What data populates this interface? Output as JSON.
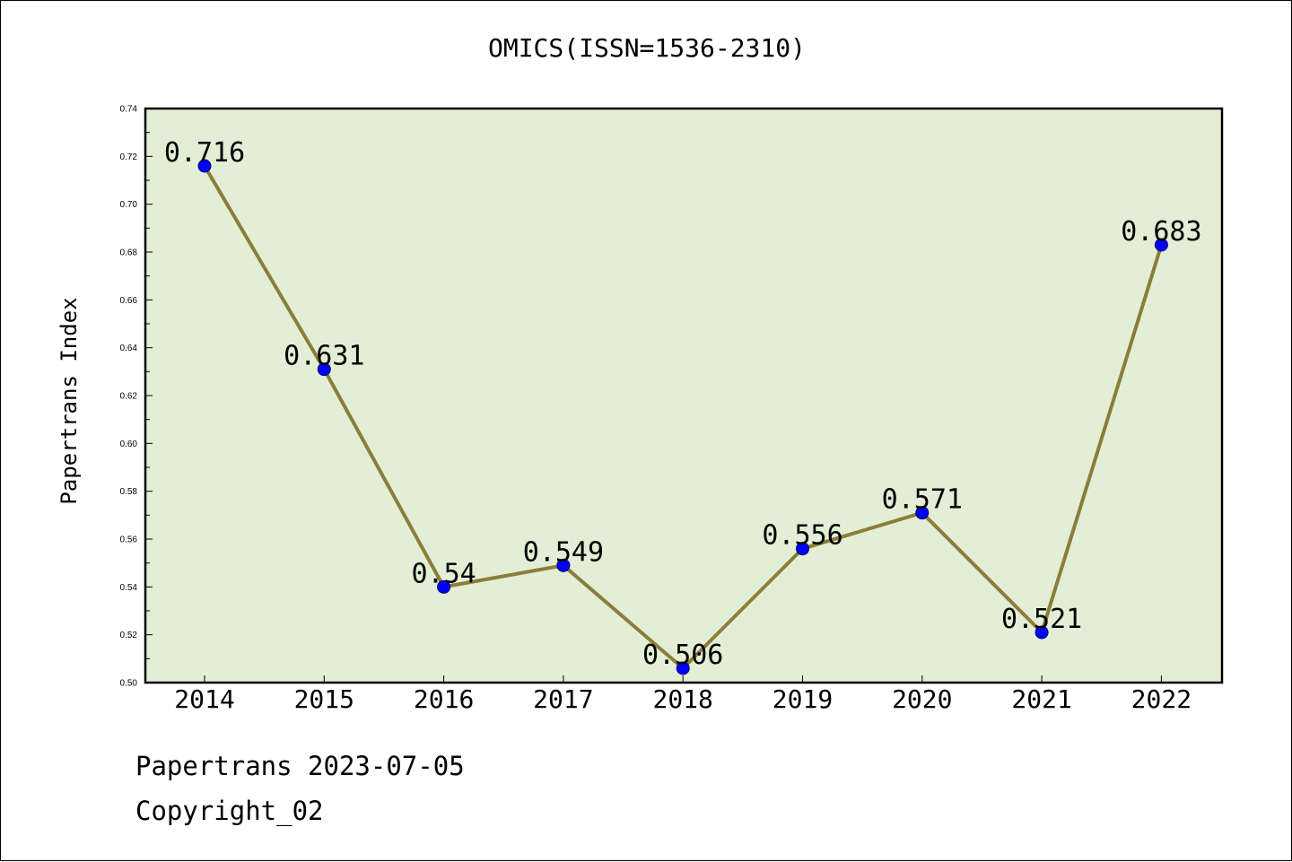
{
  "chart_data": {
    "type": "line",
    "title": "OMICS(ISSN=1536-2310)",
    "xlabel": "",
    "ylabel": "Papertrans Index",
    "categories": [
      "2014",
      "2015",
      "2016",
      "2017",
      "2018",
      "2019",
      "2020",
      "2021",
      "2022"
    ],
    "series": [
      {
        "values": [
          0.716,
          0.631,
          0.54,
          0.549,
          0.506,
          0.556,
          0.571,
          0.521,
          0.683
        ],
        "labels": [
          "0.716",
          "0.631",
          "0.54",
          "0.549",
          "0.506",
          "0.556",
          "0.571",
          "0.521",
          "0.683"
        ]
      }
    ],
    "ylim": [
      0.5,
      0.74
    ],
    "yticks": [
      "0.50",
      "0.52",
      "0.54",
      "0.56",
      "0.58",
      "0.60",
      "0.62",
      "0.64",
      "0.66",
      "0.68",
      "0.70",
      "0.72",
      "0.74"
    ],
    "grid": false,
    "legend": "none"
  },
  "footer": {
    "line1": "Papertrans 2023-07-05",
    "line2": "Copyright_02"
  },
  "colors": {
    "plot_background": "#e2efd6",
    "line": "#8b7d3a",
    "marker": "#0000ff"
  }
}
